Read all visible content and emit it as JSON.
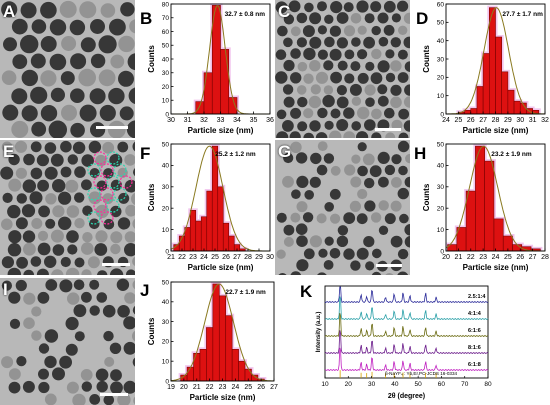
{
  "colors": {
    "bar": "#dd1111",
    "barEdge": "#7a0000",
    "fit": "#8a7a20",
    "halo": "#f2c6ee",
    "tem_bg": "#b8b8b8",
    "tem_dark": "#202020",
    "tem_light": "#8c8c8c"
  },
  "tem_panels": [
    {
      "label": "A"
    },
    {
      "label": "C"
    },
    {
      "label": "E"
    },
    {
      "label": "G"
    },
    {
      "label": "I"
    }
  ],
  "chart_data": [
    {
      "type": "bar",
      "panel": "B",
      "annotation": "32.7 ± 0.8 nm",
      "xlabel": "Particle size (nm)",
      "ylabel": "Counts",
      "xlim": [
        30,
        36
      ],
      "ylim": [
        0,
        80
      ],
      "xticks": [
        30,
        31,
        32,
        33,
        34,
        35,
        36
      ],
      "yticks": [
        0,
        10,
        20,
        30,
        40,
        50,
        60,
        70,
        80
      ],
      "bins": [
        31.75,
        32.25,
        32.75,
        33.25,
        33.75
      ],
      "values": [
        9,
        30,
        79,
        47,
        12
      ],
      "bin_width": 0.5
    },
    {
      "type": "bar",
      "panel": "D",
      "annotation": "27.7 ± 1.7 nm",
      "xlabel": "Particle size (nm)",
      "ylabel": "Counts",
      "xlim": [
        24,
        32
      ],
      "ylim": [
        0,
        60
      ],
      "xticks": [
        24,
        25,
        26,
        27,
        28,
        29,
        30,
        31,
        32
      ],
      "yticks": [
        0,
        10,
        20,
        30,
        40,
        50,
        60
      ],
      "bins": [
        25.25,
        25.75,
        26.25,
        26.75,
        27.25,
        27.75,
        28.25,
        28.75,
        29.25,
        29.75,
        30.25,
        30.75,
        31.25
      ],
      "values": [
        1,
        2,
        3,
        15,
        33,
        58,
        42,
        23,
        13,
        7,
        6,
        3,
        2
      ],
      "bin_width": 0.5
    },
    {
      "type": "bar",
      "panel": "F",
      "annotation": "25.2 ± 1.2 nm",
      "xlabel": "Particle size (nm)",
      "ylabel": "Counts",
      "xlim": [
        21,
        30
      ],
      "ylim": [
        0,
        50
      ],
      "xticks": [
        21,
        22,
        23,
        24,
        25,
        26,
        27,
        28,
        29,
        30
      ],
      "yticks": [
        0,
        10,
        20,
        30,
        40,
        50
      ],
      "bins": [
        21.5,
        22,
        22.5,
        23,
        23.5,
        24,
        24.5,
        25,
        25.5,
        26,
        26.5,
        27,
        27.5
      ],
      "values": [
        3,
        7,
        11,
        19,
        14,
        16,
        28,
        49,
        30,
        13,
        7,
        3,
        1
      ],
      "bin_width": 0.5
    },
    {
      "type": "bar",
      "panel": "H",
      "annotation": "23.2 ± 1.9 nm",
      "xlabel": "Particle size (nm)",
      "ylabel": "Counts",
      "xlim": [
        20,
        28
      ],
      "ylim": [
        0,
        50
      ],
      "xticks": [
        20,
        21,
        22,
        23,
        24,
        25,
        26,
        27,
        28
      ],
      "yticks": [
        0,
        10,
        20,
        30,
        40,
        50
      ],
      "bins": [
        20.5,
        21.25,
        22,
        22.75,
        23.5,
        24.25,
        25,
        25.75,
        26.5,
        27.25
      ],
      "values": [
        3,
        11,
        28,
        49,
        42,
        15,
        7,
        3,
        2,
        1
      ],
      "bin_width": 0.75
    },
    {
      "type": "bar",
      "panel": "J",
      "annotation": "22.7 ± 1.9 nm",
      "xlabel": "Particle size (nm)",
      "ylabel": "Counts",
      "xlim": [
        19,
        27
      ],
      "ylim": [
        0,
        50
      ],
      "xticks": [
        19,
        20,
        21,
        22,
        23,
        24,
        25,
        26,
        27
      ],
      "yticks": [
        0,
        10,
        20,
        30,
        40,
        50
      ],
      "bins": [
        20,
        20.5,
        21,
        21.5,
        22,
        22.5,
        23,
        23.5,
        24,
        24.5,
        25,
        25.5,
        26
      ],
      "values": [
        3,
        7,
        14,
        16,
        27,
        49,
        43,
        33,
        16,
        10,
        6,
        3,
        1
      ],
      "bin_width": 0.5
    },
    {
      "type": "line",
      "panel": "K",
      "xlabel": "2θ (degree)",
      "ylabel": "Intensity (a.u.)",
      "xlim": [
        10,
        80
      ],
      "xticks": [
        10,
        20,
        30,
        40,
        50,
        60,
        70,
        80
      ],
      "series": [
        {
          "name": "2.5:1:4",
          "color": "#2b2b9a",
          "offset": 4
        },
        {
          "name": "4:1:4",
          "color": "#2aa0a8",
          "offset": 3
        },
        {
          "name": "6:1:6",
          "color": "#6a6a10",
          "offset": 2
        },
        {
          "name": "8:1:6",
          "color": "#6a1a8a",
          "offset": 1
        },
        {
          "name": "6:1:8",
          "color": "#c020c0",
          "offset": 0
        }
      ],
      "peaks": [
        16.5,
        25.5,
        27.9,
        30.2,
        36,
        39.7,
        43.5,
        46.5,
        53.2,
        57.7
      ],
      "reference_label": "β-NaYF₄ :  Yb,Er,PC-JCDS 16-0334"
    }
  ]
}
